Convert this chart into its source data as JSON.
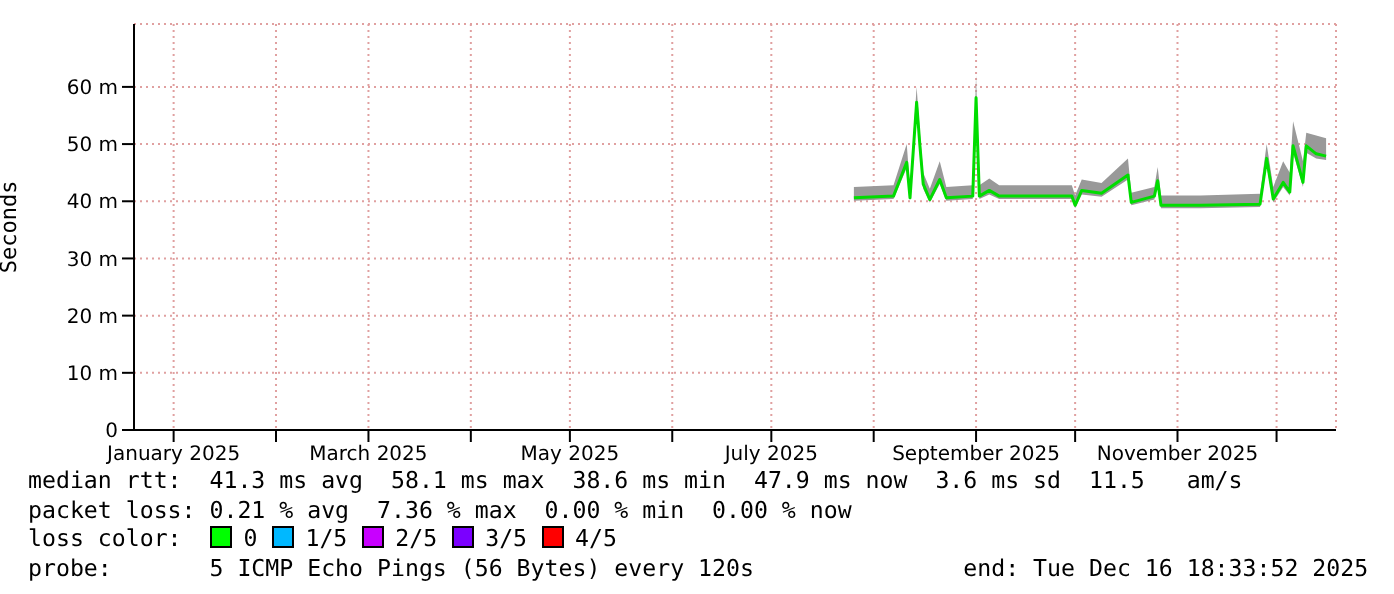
{
  "chart_data": {
    "type": "line",
    "ylabel": "Seconds",
    "grid": true,
    "xlim": [
      "2024-12-20",
      "2025-12-19"
    ],
    "xticks": [
      {
        "value": "2025-01-01",
        "label": "January 2025"
      },
      {
        "value": "2025-02-01",
        "label": null
      },
      {
        "value": "2025-03-01",
        "label": "March 2025"
      },
      {
        "value": "2025-04-01",
        "label": null
      },
      {
        "value": "2025-05-01",
        "label": "May 2025"
      },
      {
        "value": "2025-06-01",
        "label": null
      },
      {
        "value": "2025-07-01",
        "label": "July 2025"
      },
      {
        "value": "2025-08-01",
        "label": null
      },
      {
        "value": "2025-09-01",
        "label": "September 2025"
      },
      {
        "value": "2025-10-01",
        "label": null
      },
      {
        "value": "2025-11-01",
        "label": "November 2025"
      },
      {
        "value": "2025-12-01",
        "label": null
      }
    ],
    "ylim": [
      0,
      71
    ],
    "yticks": [
      0,
      {
        "value": 10,
        "label": "10 m"
      },
      {
        "value": 20,
        "label": "20 m"
      },
      {
        "value": 30,
        "label": "30 m"
      },
      {
        "value": 40,
        "label": "40 m"
      },
      {
        "value": 50,
        "label": "50 m"
      },
      {
        "value": 60,
        "label": "60 m"
      }
    ],
    "x": [
      "2025-07-26",
      "2025-08-07",
      "2025-08-11",
      "2025-08-12",
      "2025-08-14",
      "2025-08-15",
      "2025-08-16",
      "2025-08-18",
      "2025-08-21",
      "2025-08-23",
      "2025-08-31",
      "2025-09-01",
      "2025-09-02",
      "2025-09-05",
      "2025-09-08",
      "2025-09-30",
      "2025-10-01",
      "2025-10-03",
      "2025-10-09",
      "2025-10-17",
      "2025-10-18",
      "2025-10-25",
      "2025-10-26",
      "2025-10-27",
      "2025-11-08",
      "2025-11-26",
      "2025-11-28",
      "2025-11-30",
      "2025-12-03",
      "2025-12-05",
      "2025-12-06",
      "2025-12-09",
      "2025-12-10",
      "2025-12-13",
      "2025-12-16"
    ],
    "series": [
      {
        "color": "#00dd00",
        "line_style": "solid",
        "marker": "none",
        "values": [
          40.6,
          40.9,
          46.8,
          40.6,
          57.3,
          49.7,
          43,
          40.3,
          43.8,
          40.6,
          40.9,
          58.1,
          40.9,
          41.9,
          40.9,
          40.9,
          39.3,
          41.9,
          41.4,
          44.6,
          39.8,
          40.9,
          43.6,
          39.3,
          39.3,
          39.5,
          47.5,
          40.4,
          43.3,
          41.6,
          49.7,
          43.3,
          49.7,
          48.3,
          47.9
        ],
        "lower": [
          40.1,
          40.4,
          45.8,
          40.1,
          55.5,
          48.5,
          42.2,
          39.8,
          43,
          40.1,
          40.4,
          57,
          40.4,
          41.2,
          40.4,
          40.4,
          38.8,
          41.2,
          40.8,
          43.8,
          39.3,
          40.3,
          42.8,
          38.8,
          38.8,
          39,
          46.2,
          39.8,
          42.5,
          41,
          48.5,
          42.5,
          48.5,
          47.5,
          47.2
        ],
        "upper": [
          42.5,
          42.8,
          50,
          42.5,
          60,
          52,
          45,
          42.2,
          47,
          42.5,
          42.8,
          62,
          42.8,
          44,
          42.8,
          42.8,
          41,
          43.8,
          43.2,
          47.5,
          41.5,
          42.5,
          46,
          41,
          41,
          41.3,
          50,
          42.5,
          47,
          45,
          54,
          47,
          52,
          51.5,
          51
        ]
      }
    ],
    "annotations": [
      "median rtt:  41.3 ms avg  58.1 ms max  38.6 ms min  47.9 ms now  3.6 ms sd  11.5   am/s",
      "packet loss: 0.21 % avg  7.36 % max  0.00 % min  0.00 % now",
      "loss color:  0  1/5  2/5  3/5  4/5",
      "probe:       5 ICMP Echo Pings (56 Bytes) every 120s               end: Tue Dec 16 18:33:52 2025"
    ]
  }
}
